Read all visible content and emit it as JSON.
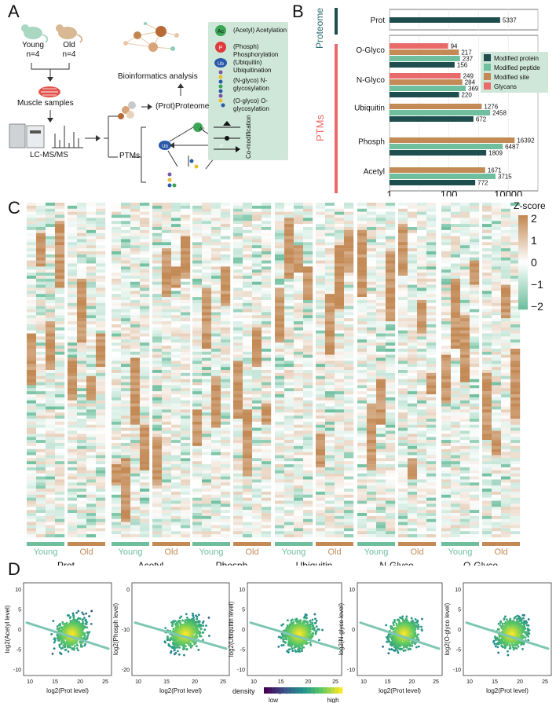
{
  "panels": {
    "a": "A",
    "b": "B",
    "c": "C",
    "d": "D"
  },
  "panelA": {
    "young_label": "Young",
    "young_n": "n=4",
    "old_label": "Old",
    "old_n": "n=4",
    "muscle": "Muscle samples",
    "lcms": "LC-MS/MS",
    "bioinfo": "Bioinformatics analysis",
    "proteome": "(Prot)Proteome",
    "ptms": "PTMs",
    "legend": [
      {
        "badge": "Ac",
        "text": "(Acetyl) Acetylation",
        "color": "#3aa655"
      },
      {
        "badge": "P",
        "text": "(Phosph) Phosphorylation",
        "color": "#e03a3a"
      },
      {
        "badge": "Ub",
        "text": "(Ubiquitin) Ubiquitination",
        "color": "#2a5aa8"
      },
      {
        "badge": "",
        "text": "(N-glyco) N-glycosylation",
        "color": "#7a57a8"
      },
      {
        "badge": "",
        "text": "(O-glyco) O-glycosylation",
        "color": "#e8c02a"
      }
    ],
    "comod": "Co-modification",
    "badge_ac": "Ac",
    "badge_p": "P",
    "badge_ub": "Ub"
  },
  "panelB_side": {
    "proteome": "Proteome",
    "ptms": "PTMs"
  },
  "chart_data": [
    {
      "type": "bar",
      "orientation": "horizontal",
      "x_scale": "log10",
      "xlim": [
        1,
        100000
      ],
      "x_ticks": [
        "1",
        "100",
        "10000"
      ],
      "legend_position": "right",
      "categories": [
        "Prot",
        "O-Glyco",
        "N-Glyco",
        "Ubiquitin",
        "Phosph",
        "Acetyl"
      ],
      "series": [
        {
          "name": "Modified protein",
          "color": "#1f4e4f",
          "values": [
            5337,
            156,
            220,
            672,
            1809,
            772
          ]
        },
        {
          "name": "Modified peptide",
          "color": "#6fbf9f",
          "values": [
            null,
            237,
            369,
            2458,
            6487,
            3715
          ]
        },
        {
          "name": "Modified site",
          "color": "#c38a56",
          "values": [
            null,
            217,
            284,
            1276,
            16392,
            1671
          ]
        },
        {
          "name": "Glycans",
          "color": "#e96a6a",
          "values": [
            null,
            94,
            249,
            null,
            null,
            null
          ]
        }
      ]
    },
    {
      "type": "heatmap",
      "colorbar_title": "Z-score",
      "colorbar_ticks": [
        "2",
        "1",
        "0",
        "−1",
        "−2"
      ],
      "panels": [
        "Prot",
        "Acetyl",
        "Phosph",
        "Ubiquitin",
        "N-Glyco",
        "O-Glyco"
      ],
      "groups": [
        "Young",
        "Old"
      ],
      "low_color": "#6fbf9f",
      "mid_color": "#ffffff",
      "high_color": "#c38a56"
    },
    {
      "type": "scatter",
      "legend_title": "density",
      "legend_low": "low",
      "legend_high": "high",
      "xlabel": "log2(Prot level)",
      "plots": [
        {
          "ylabel": "log2(Acetyl level)",
          "x_ticks": [
            "10",
            "15",
            "20",
            "25"
          ],
          "y_ticks": [
            "10",
            "5",
            "0",
            "-5",
            "-10"
          ]
        },
        {
          "ylabel": "log2(Phosph level)",
          "x_ticks": [
            "10",
            "15",
            "20",
            "25"
          ],
          "y_ticks": [
            "0",
            "-10",
            "-20"
          ]
        },
        {
          "ylabel": "log2(Ubiquitin level)",
          "x_ticks": [
            "10",
            "15",
            "20",
            "25"
          ],
          "y_ticks": [
            "10",
            "5",
            "0",
            "-5",
            "-10"
          ]
        },
        {
          "ylabel": "log2(N-glyco level)",
          "x_ticks": [
            "10",
            "15",
            "20",
            "25"
          ],
          "y_ticks": [
            "10",
            "0",
            "-10"
          ]
        },
        {
          "ylabel": "log2(O-glyco level)",
          "x_ticks": [
            "10",
            "15",
            "20",
            "25"
          ],
          "y_ticks": [
            "10",
            "5",
            "0",
            "-5",
            "-10"
          ]
        }
      ]
    }
  ]
}
